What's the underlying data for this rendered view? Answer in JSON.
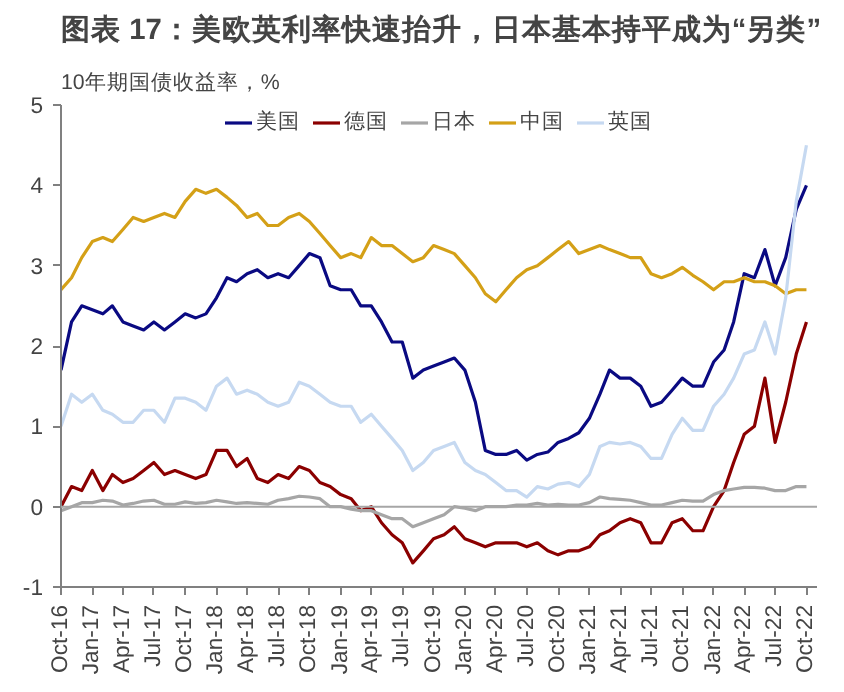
{
  "chart_data": {
    "type": "line",
    "title": "图表 17：美欧英利率快速抬升，日本基本持平成为“另类”",
    "ylabel": "10年期国债收益率，%",
    "x": [
      "2016-10",
      "2016-11",
      "2016-12",
      "2017-01",
      "2017-02",
      "2017-03",
      "2017-04",
      "2017-05",
      "2017-06",
      "2017-07",
      "2017-08",
      "2017-09",
      "2017-10",
      "2017-11",
      "2017-12",
      "2018-01",
      "2018-02",
      "2018-03",
      "2018-04",
      "2018-05",
      "2018-06",
      "2018-07",
      "2018-08",
      "2018-09",
      "2018-10",
      "2018-11",
      "2018-12",
      "2019-01",
      "2019-02",
      "2019-03",
      "2019-04",
      "2019-05",
      "2019-06",
      "2019-07",
      "2019-08",
      "2019-09",
      "2019-10",
      "2019-11",
      "2019-12",
      "2020-01",
      "2020-02",
      "2020-03",
      "2020-04",
      "2020-05",
      "2020-06",
      "2020-07",
      "2020-08",
      "2020-09",
      "2020-10",
      "2020-11",
      "2020-12",
      "2021-01",
      "2021-02",
      "2021-03",
      "2021-04",
      "2021-05",
      "2021-06",
      "2021-07",
      "2021-08",
      "2021-09",
      "2021-10",
      "2021-11",
      "2021-12",
      "2022-01",
      "2022-02",
      "2022-03",
      "2022-04",
      "2022-05",
      "2022-06",
      "2022-07",
      "2022-08",
      "2022-09",
      "2022-10"
    ],
    "series": [
      {
        "name": "美国",
        "color": "#0a0a82",
        "values": [
          1.7,
          2.3,
          2.5,
          2.45,
          2.4,
          2.5,
          2.3,
          2.25,
          2.2,
          2.3,
          2.2,
          2.3,
          2.4,
          2.35,
          2.4,
          2.6,
          2.85,
          2.8,
          2.9,
          2.95,
          2.85,
          2.9,
          2.85,
          3.0,
          3.15,
          3.1,
          2.75,
          2.7,
          2.7,
          2.5,
          2.5,
          2.3,
          2.05,
          2.05,
          1.6,
          1.7,
          1.75,
          1.8,
          1.85,
          1.7,
          1.3,
          0.7,
          0.65,
          0.65,
          0.7,
          0.58,
          0.65,
          0.68,
          0.8,
          0.85,
          0.92,
          1.1,
          1.4,
          1.7,
          1.6,
          1.6,
          1.5,
          1.25,
          1.3,
          1.45,
          1.6,
          1.5,
          1.5,
          1.8,
          1.95,
          2.3,
          2.9,
          2.85,
          3.2,
          2.75,
          3.1,
          3.7,
          4.0
        ]
      },
      {
        "name": "德国",
        "color": "#8b0000",
        "values": [
          0.0,
          0.25,
          0.2,
          0.45,
          0.2,
          0.4,
          0.3,
          0.35,
          0.45,
          0.55,
          0.4,
          0.45,
          0.4,
          0.35,
          0.4,
          0.7,
          0.7,
          0.5,
          0.6,
          0.35,
          0.3,
          0.4,
          0.35,
          0.5,
          0.45,
          0.3,
          0.25,
          0.15,
          0.1,
          -0.05,
          0.0,
          -0.2,
          -0.35,
          -0.45,
          -0.7,
          -0.55,
          -0.4,
          -0.35,
          -0.25,
          -0.4,
          -0.45,
          -0.5,
          -0.45,
          -0.45,
          -0.45,
          -0.5,
          -0.45,
          -0.55,
          -0.6,
          -0.55,
          -0.55,
          -0.5,
          -0.35,
          -0.3,
          -0.2,
          -0.15,
          -0.2,
          -0.45,
          -0.45,
          -0.2,
          -0.15,
          -0.3,
          -0.3,
          0.0,
          0.2,
          0.55,
          0.9,
          1.0,
          1.6,
          0.8,
          1.3,
          1.9,
          2.3
        ]
      },
      {
        "name": "日本",
        "color": "#a6a6a6",
        "values": [
          -0.05,
          0.0,
          0.05,
          0.05,
          0.08,
          0.07,
          0.02,
          0.04,
          0.07,
          0.08,
          0.03,
          0.03,
          0.06,
          0.04,
          0.05,
          0.08,
          0.06,
          0.04,
          0.05,
          0.04,
          0.03,
          0.08,
          0.1,
          0.13,
          0.12,
          0.1,
          0.0,
          0.0,
          -0.03,
          -0.05,
          -0.05,
          -0.1,
          -0.15,
          -0.15,
          -0.25,
          -0.2,
          -0.15,
          -0.1,
          0.0,
          -0.02,
          -0.05,
          0.0,
          0.0,
          0.0,
          0.02,
          0.02,
          0.04,
          0.02,
          0.03,
          0.02,
          0.02,
          0.05,
          0.12,
          0.1,
          0.09,
          0.08,
          0.05,
          0.02,
          0.02,
          0.05,
          0.08,
          0.07,
          0.07,
          0.15,
          0.2,
          0.22,
          0.24,
          0.24,
          0.23,
          0.2,
          0.2,
          0.25,
          0.25
        ]
      },
      {
        "name": "中国",
        "color": "#d4a017",
        "values": [
          2.7,
          2.85,
          3.1,
          3.3,
          3.35,
          3.3,
          3.45,
          3.6,
          3.55,
          3.6,
          3.65,
          3.6,
          3.8,
          3.95,
          3.9,
          3.95,
          3.85,
          3.75,
          3.6,
          3.65,
          3.5,
          3.5,
          3.6,
          3.65,
          3.55,
          3.4,
          3.25,
          3.1,
          3.15,
          3.1,
          3.35,
          3.25,
          3.25,
          3.15,
          3.05,
          3.1,
          3.25,
          3.2,
          3.15,
          3.0,
          2.85,
          2.65,
          2.55,
          2.7,
          2.85,
          2.95,
          3.0,
          3.1,
          3.2,
          3.3,
          3.15,
          3.2,
          3.25,
          3.2,
          3.15,
          3.1,
          3.1,
          2.9,
          2.85,
          2.9,
          2.98,
          2.88,
          2.8,
          2.7,
          2.8,
          2.8,
          2.85,
          2.8,
          2.8,
          2.75,
          2.65,
          2.7,
          2.7
        ]
      },
      {
        "name": "英国",
        "color": "#c6d9f1",
        "values": [
          1.0,
          1.4,
          1.3,
          1.4,
          1.2,
          1.15,
          1.05,
          1.05,
          1.2,
          1.2,
          1.05,
          1.35,
          1.35,
          1.3,
          1.2,
          1.5,
          1.6,
          1.4,
          1.45,
          1.4,
          1.3,
          1.25,
          1.3,
          1.55,
          1.5,
          1.4,
          1.3,
          1.25,
          1.25,
          1.05,
          1.15,
          1.0,
          0.85,
          0.7,
          0.45,
          0.55,
          0.7,
          0.75,
          0.8,
          0.55,
          0.45,
          0.4,
          0.3,
          0.2,
          0.2,
          0.12,
          0.25,
          0.22,
          0.28,
          0.3,
          0.25,
          0.4,
          0.75,
          0.8,
          0.78,
          0.8,
          0.75,
          0.6,
          0.6,
          0.9,
          1.1,
          0.95,
          0.95,
          1.25,
          1.4,
          1.6,
          1.9,
          1.95,
          2.3,
          1.9,
          2.6,
          3.8,
          4.5
        ]
      }
    ],
    "xlim": [
      "2016-10",
      "2022-11"
    ],
    "xticks": [
      {
        "value": "2016-10",
        "label": "Oct-16"
      },
      {
        "value": "2017-01",
        "label": "Jan-17"
      },
      {
        "value": "2017-04",
        "label": "Apr-17"
      },
      {
        "value": "2017-07",
        "label": "Jul-17"
      },
      {
        "value": "2017-10",
        "label": "Oct-17"
      },
      {
        "value": "2018-01",
        "label": "Jan-18"
      },
      {
        "value": "2018-04",
        "label": "Apr-18"
      },
      {
        "value": "2018-07",
        "label": "Jul-18"
      },
      {
        "value": "2018-10",
        "label": "Oct-18"
      },
      {
        "value": "2019-01",
        "label": "Jan-19"
      },
      {
        "value": "2019-04",
        "label": "Apr-19"
      },
      {
        "value": "2019-07",
        "label": "Jul-19"
      },
      {
        "value": "2019-10",
        "label": "Oct-19"
      },
      {
        "value": "2020-01",
        "label": "Jan-20"
      },
      {
        "value": "2020-04",
        "label": "Apr-20"
      },
      {
        "value": "2020-07",
        "label": "Jul-20"
      },
      {
        "value": "2020-10",
        "label": "Oct-20"
      },
      {
        "value": "2021-01",
        "label": "Jan-21"
      },
      {
        "value": "2021-04",
        "label": "Apr-21"
      },
      {
        "value": "2021-07",
        "label": "Jul-21"
      },
      {
        "value": "2021-10",
        "label": "Oct-21"
      },
      {
        "value": "2022-01",
        "label": "Jan-22"
      },
      {
        "value": "2022-04",
        "label": "Apr-22"
      },
      {
        "value": "2022-07",
        "label": "Jul-22"
      },
      {
        "value": "2022-10",
        "label": "Oct-22"
      }
    ],
    "ylim": [
      -1,
      5
    ],
    "yticks": [
      -1,
      0,
      1,
      2,
      3,
      4,
      5
    ],
    "ref_lines": [
      {
        "axis": "y",
        "value": 0,
        "color": "#a6a6a6"
      }
    ],
    "grid": false,
    "legend": "top",
    "line_style": "solid"
  }
}
